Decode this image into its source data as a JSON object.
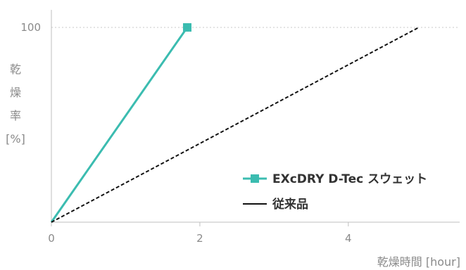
{
  "chart_data": {
    "type": "line",
    "title": "",
    "xlabel": "乾燥時間 [hour]",
    "ylabel": [
      "乾",
      "燥",
      "率",
      "[%]"
    ],
    "xlim": [
      0,
      5.5
    ],
    "ylim": [
      0,
      100
    ],
    "x_ticks": [
      {
        "value": 0,
        "label": "0"
      },
      {
        "value": 2,
        "label": "2"
      },
      {
        "value": 4,
        "label": "4"
      }
    ],
    "y_ticks": [
      {
        "value": 100,
        "label": "100"
      }
    ],
    "grid": "horizontal dotted at 100",
    "legend_position": "lower-right",
    "series": [
      {
        "name": "EXcDRY D-Tec スウェット",
        "color": "#3bbcb0",
        "style": "solid",
        "marker": "square-end",
        "points": [
          [
            0,
            0
          ],
          [
            1.83,
            100
          ]
        ]
      },
      {
        "name": "従来品",
        "color": "#111111",
        "style": "dashed",
        "marker": "none",
        "points": [
          [
            0,
            0
          ],
          [
            4.95,
            100
          ]
        ]
      }
    ]
  }
}
